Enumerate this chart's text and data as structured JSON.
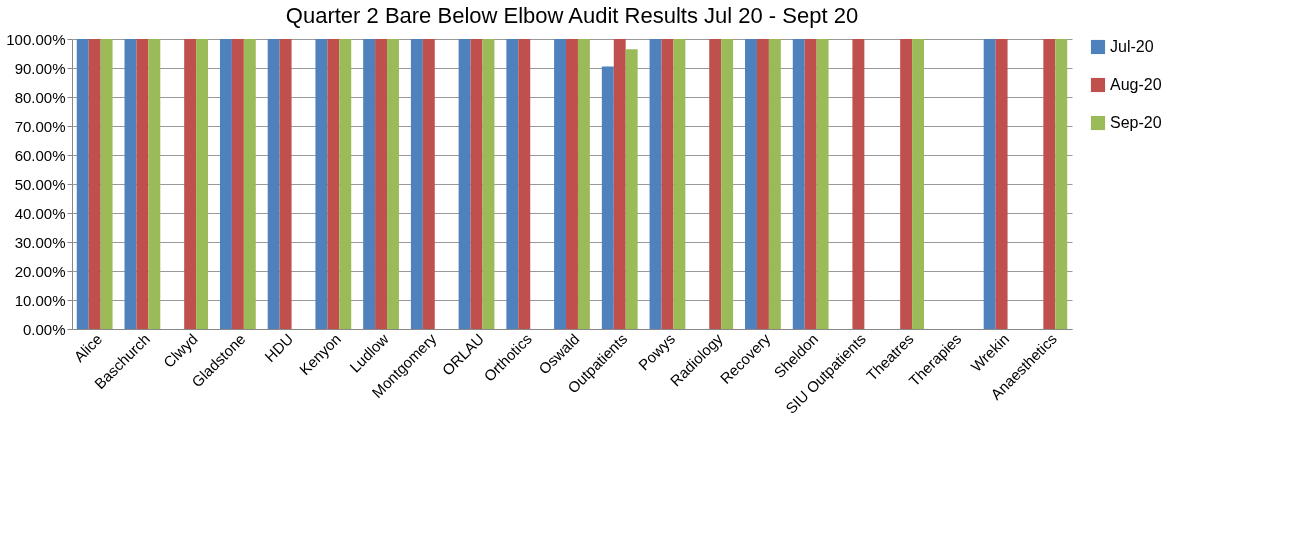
{
  "chart_data": {
    "type": "bar",
    "title": "Quarter 2 Bare Below Elbow Audit Results Jul 20 - Sept 20",
    "categories": [
      "Alice",
      "Baschurch",
      "Clwyd",
      "Gladstone",
      "HDU",
      "Kenyon",
      "Ludlow",
      "Montgomery",
      "ORLAU",
      "Orthotics",
      "Oswald",
      "Outpatients",
      "Powys",
      "Radiology",
      "Recovery",
      "Sheldon",
      "SIU Outpatients",
      "Theatres",
      "Therapies",
      "Wrekin",
      "Anaesthetics"
    ],
    "series": [
      {
        "name": "Jul-20",
        "color": "#4f81bd",
        "values": [
          100,
          100,
          null,
          100,
          100,
          100,
          100,
          100,
          100,
          100,
          100,
          90.5,
          100,
          null,
          100,
          100,
          null,
          null,
          null,
          100,
          null
        ]
      },
      {
        "name": "Aug-20",
        "color": "#c0504d",
        "values": [
          100,
          100,
          100,
          100,
          100,
          100,
          100,
          100,
          100,
          100,
          100,
          100,
          100,
          100,
          100,
          100,
          100,
          100,
          null,
          100,
          100
        ]
      },
      {
        "name": "Sep-20",
        "color": "#9bbb59",
        "values": [
          100,
          100,
          100,
          100,
          null,
          100,
          100,
          null,
          100,
          null,
          100,
          96.5,
          100,
          100,
          100,
          100,
          null,
          100,
          null,
          null,
          100
        ]
      }
    ],
    "ylim": [
      0,
      100
    ],
    "yticks": [
      {
        "value": 0,
        "label": "0.00%"
      },
      {
        "value": 10,
        "label": "10.00%"
      },
      {
        "value": 20,
        "label": "20.00%"
      },
      {
        "value": 30,
        "label": "30.00%"
      },
      {
        "value": 40,
        "label": "40.00%"
      },
      {
        "value": 50,
        "label": "50.00%"
      },
      {
        "value": 60,
        "label": "60.00%"
      },
      {
        "value": 70,
        "label": "70.00%"
      },
      {
        "value": 80,
        "label": "80.00%"
      },
      {
        "value": 90,
        "label": "90.00%"
      },
      {
        "value": 100,
        "label": "100.00%"
      }
    ],
    "grid": "y",
    "legend": "right"
  }
}
